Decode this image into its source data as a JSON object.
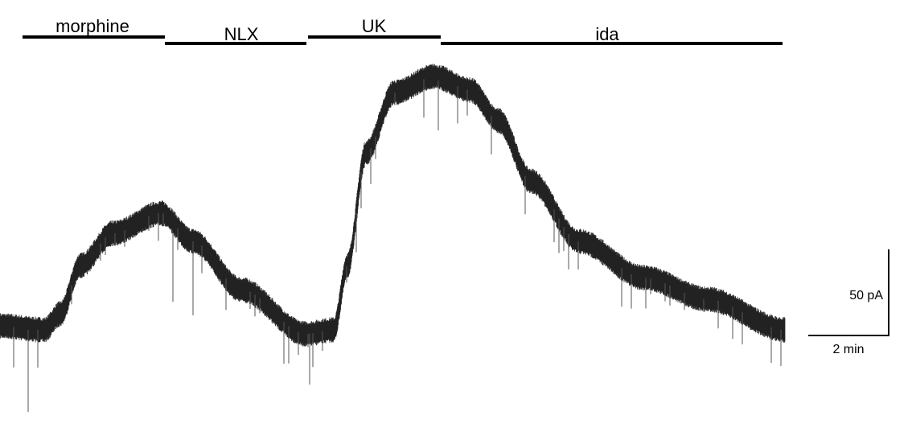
{
  "drugs": [
    {
      "label": "morphine"
    },
    {
      "label": "NLX"
    },
    {
      "label": "UK"
    },
    {
      "label": "ida"
    }
  ],
  "scale_bar": {
    "current": "50 pA",
    "time": "2 min"
  }
}
